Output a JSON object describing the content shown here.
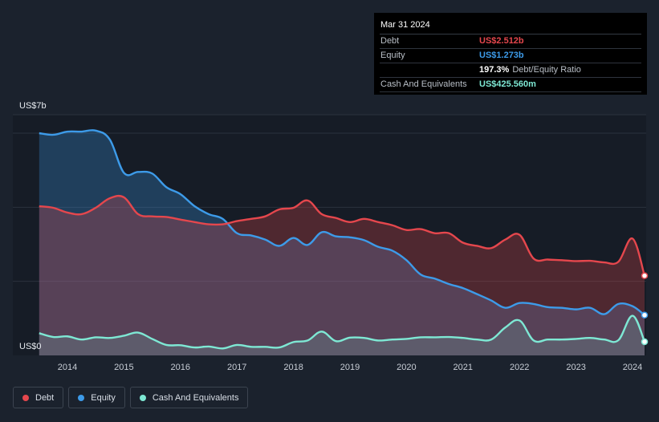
{
  "tooltip": {
    "date": "Mar 31 2024",
    "rows": [
      {
        "label": "Debt",
        "value": "US$2.512b",
        "color": "#e5474d",
        "suffix": ""
      },
      {
        "label": "Equity",
        "value": "US$1.273b",
        "color": "#3d9be9",
        "suffix": ""
      },
      {
        "label": "",
        "value": "197.3%",
        "color": "#ffffff",
        "suffix": "Debt/Equity Ratio"
      },
      {
        "label": "Cash And Equivalents",
        "value": "US$425.560m",
        "color": "#7ee8d4",
        "suffix": ""
      }
    ]
  },
  "legend": [
    {
      "label": "Debt",
      "color": "#e5474d"
    },
    {
      "label": "Equity",
      "color": "#3d9be9"
    },
    {
      "label": "Cash And Equivalents",
      "color": "#7ee8d4"
    }
  ],
  "chart_data": {
    "type": "area",
    "y_top_label": "US$7b",
    "y_bottom_label": "US$0",
    "ylim": [
      0,
      7
    ],
    "xlim": [
      2013.45,
      2024.25
    ],
    "x_ticks": [
      "2014",
      "2015",
      "2016",
      "2017",
      "2018",
      "2019",
      "2020",
      "2021",
      "2022",
      "2023",
      "2024"
    ],
    "grid": true,
    "series": [
      {
        "name": "Debt",
        "color": "#e5474d",
        "x": [
          2013.5,
          2013.75,
          2014.0,
          2014.25,
          2014.5,
          2014.75,
          2015.0,
          2015.25,
          2015.5,
          2015.75,
          2016.0,
          2016.25,
          2016.5,
          2016.75,
          2017.0,
          2017.25,
          2017.5,
          2017.75,
          2018.0,
          2018.25,
          2018.5,
          2018.75,
          2019.0,
          2019.25,
          2019.5,
          2019.75,
          2020.0,
          2020.25,
          2020.5,
          2020.75,
          2021.0,
          2021.25,
          2021.5,
          2021.75,
          2022.0,
          2022.25,
          2022.5,
          2022.75,
          2023.0,
          2023.25,
          2023.5,
          2023.75,
          2024.0,
          2024.25
        ],
        "values": [
          4.7,
          4.65,
          4.5,
          4.45,
          4.65,
          4.95,
          4.98,
          4.45,
          4.38,
          4.36,
          4.28,
          4.2,
          4.13,
          4.13,
          4.23,
          4.3,
          4.38,
          4.6,
          4.65,
          4.88,
          4.45,
          4.33,
          4.2,
          4.3,
          4.2,
          4.1,
          3.95,
          3.98,
          3.85,
          3.85,
          3.55,
          3.45,
          3.38,
          3.65,
          3.8,
          3.05,
          3.02,
          3.0,
          2.97,
          2.98,
          2.93,
          2.95,
          3.68,
          2.51
        ]
      },
      {
        "name": "Equity",
        "color": "#3d9be9",
        "x": [
          2013.5,
          2013.75,
          2014.0,
          2014.25,
          2014.5,
          2014.75,
          2015.0,
          2015.25,
          2015.5,
          2015.75,
          2016.0,
          2016.25,
          2016.5,
          2016.75,
          2017.0,
          2017.25,
          2017.5,
          2017.75,
          2018.0,
          2018.25,
          2018.5,
          2018.75,
          2019.0,
          2019.25,
          2019.5,
          2019.75,
          2020.0,
          2020.25,
          2020.5,
          2020.75,
          2021.0,
          2021.25,
          2021.5,
          2021.75,
          2022.0,
          2022.25,
          2022.5,
          2022.75,
          2023.0,
          2023.25,
          2023.5,
          2023.75,
          2024.0,
          2024.25
        ],
        "values": [
          7.0,
          6.95,
          7.05,
          7.05,
          7.08,
          6.8,
          5.75,
          5.78,
          5.73,
          5.3,
          5.08,
          4.7,
          4.45,
          4.3,
          3.85,
          3.78,
          3.65,
          3.45,
          3.7,
          3.48,
          3.88,
          3.75,
          3.72,
          3.63,
          3.42,
          3.3,
          3.0,
          2.55,
          2.42,
          2.25,
          2.12,
          1.93,
          1.73,
          1.5,
          1.65,
          1.62,
          1.52,
          1.5,
          1.45,
          1.5,
          1.3,
          1.62,
          1.55,
          1.27
        ]
      },
      {
        "name": "Cash And Equivalents",
        "color": "#7ee8d4",
        "x": [
          2013.5,
          2013.75,
          2014.0,
          2014.25,
          2014.5,
          2014.75,
          2015.0,
          2015.25,
          2015.5,
          2015.75,
          2016.0,
          2016.25,
          2016.5,
          2016.75,
          2017.0,
          2017.25,
          2017.5,
          2017.75,
          2018.0,
          2018.25,
          2018.5,
          2018.75,
          2019.0,
          2019.25,
          2019.5,
          2019.75,
          2020.0,
          2020.25,
          2020.5,
          2020.75,
          2021.0,
          2021.25,
          2021.5,
          2021.75,
          2022.0,
          2022.25,
          2022.5,
          2022.75,
          2023.0,
          2023.25,
          2023.5,
          2023.75,
          2024.0,
          2024.25
        ],
        "values": [
          0.7,
          0.58,
          0.6,
          0.5,
          0.57,
          0.55,
          0.62,
          0.72,
          0.52,
          0.33,
          0.32,
          0.25,
          0.28,
          0.22,
          0.33,
          0.27,
          0.27,
          0.25,
          0.42,
          0.47,
          0.75,
          0.45,
          0.56,
          0.55,
          0.47,
          0.5,
          0.52,
          0.57,
          0.57,
          0.58,
          0.55,
          0.5,
          0.5,
          0.88,
          1.1,
          0.47,
          0.5,
          0.5,
          0.52,
          0.55,
          0.5,
          0.48,
          1.25,
          0.43
        ]
      }
    ]
  }
}
